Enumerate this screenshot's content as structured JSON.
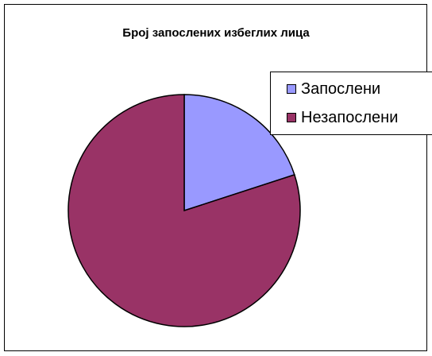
{
  "chart_data": {
    "type": "pie",
    "title": "Број запослених избеглих лица",
    "categories": [
      "Запослени",
      "Незапослени"
    ],
    "values": [
      20,
      80
    ],
    "colors": [
      "#9999FF",
      "#993366"
    ],
    "legend": "right",
    "start_angle_deg": 0,
    "direction": "clockwise"
  }
}
